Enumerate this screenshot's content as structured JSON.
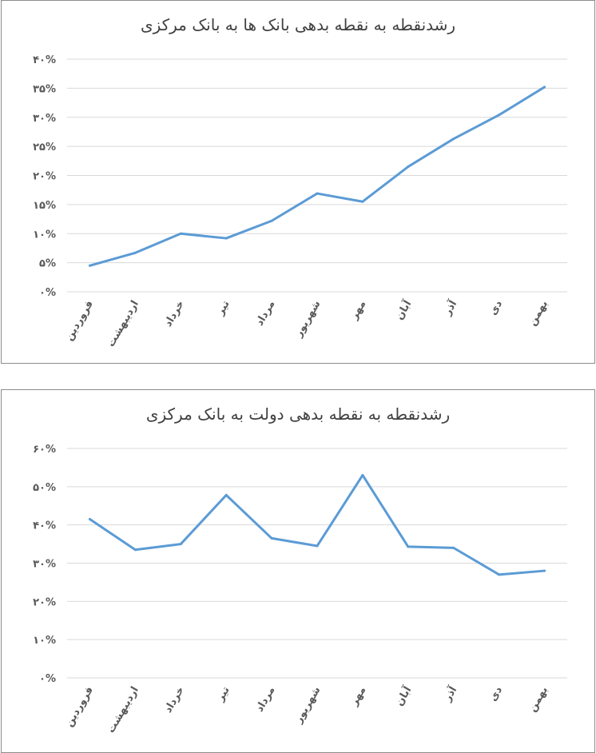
{
  "chart_data": [
    {
      "type": "line",
      "title": "رشدنقطه به نقطه بدهی بانک ها به بانک مرکزی",
      "categories": [
        "فروردین",
        "اردیبهشت",
        "خرداد",
        "تیر",
        "مرداد",
        "شهریور",
        "مهر",
        "آبان",
        "آذر",
        "دی",
        "بهمن"
      ],
      "values": [
        4.5,
        6.7,
        10.0,
        9.2,
        12.2,
        16.9,
        15.5,
        21.5,
        26.3,
        30.4,
        35.2
      ],
      "ylim": [
        0,
        40
      ],
      "yticks": [
        0,
        5,
        10,
        15,
        20,
        25,
        30,
        35,
        40
      ],
      "ytick_labels": [
        "۰%",
        "۵%",
        "۱۰%",
        "۱۵%",
        "۲۰%",
        "۲۵%",
        "۳۰%",
        "۳۵%",
        "۴۰%"
      ],
      "grid": true,
      "color": "#5b9bd5"
    },
    {
      "type": "line",
      "title": "رشدنقطه به نقطه بدهی دولت به بانک مرکزی",
      "categories": [
        "فروردین",
        "اردیبهشت",
        "خرداد",
        "تیر",
        "مرداد",
        "شهریور",
        "مهر",
        "آبان",
        "آذر",
        "دی",
        "بهمن"
      ],
      "values": [
        41.5,
        33.5,
        35.0,
        47.8,
        36.5,
        34.5,
        53.0,
        34.3,
        34.0,
        27.0,
        28.0
      ],
      "ylim": [
        0,
        60
      ],
      "yticks": [
        0,
        10,
        20,
        30,
        40,
        50,
        60
      ],
      "ytick_labels": [
        "۰%",
        "۱۰%",
        "۲۰%",
        "۳۰%",
        "۴۰%",
        "۵۰%",
        "۶۰%"
      ],
      "grid": true,
      "color": "#5b9bd5"
    }
  ]
}
